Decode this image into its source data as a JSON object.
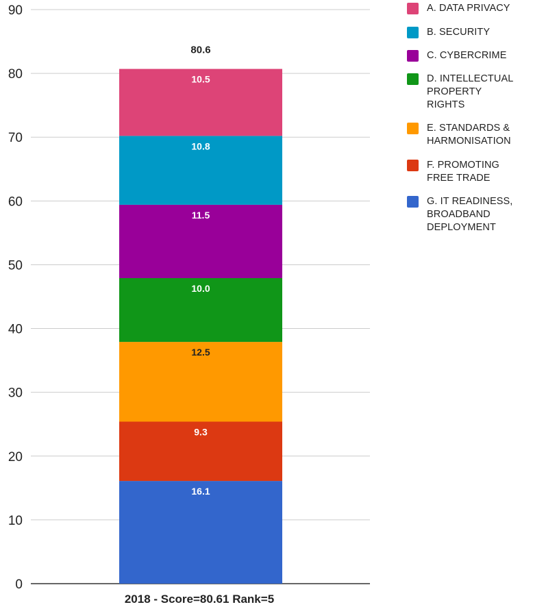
{
  "chart_data": {
    "type": "bar",
    "stacked": true,
    "categories": [
      "2018 - Score=80.61 Rank=5"
    ],
    "series": [
      {
        "name": "G. IT READINESS, BROADBAND DEPLOYMENT",
        "values": [
          16.1
        ],
        "label": "16.1",
        "color": "#3366cc"
      },
      {
        "name": "F. PROMOTING FREE TRADE",
        "values": [
          9.3
        ],
        "label": "9.3",
        "color": "#dc3912"
      },
      {
        "name": "E. STANDARDS & HARMONISATION",
        "values": [
          12.5
        ],
        "label": "12.5",
        "color": "#ff9900"
      },
      {
        "name": "D. INTELLECTUAL PROPERTY RIGHTS",
        "values": [
          10.0
        ],
        "label": "10.0",
        "color": "#109618"
      },
      {
        "name": "C. CYBERCRIME",
        "values": [
          11.5
        ],
        "label": "11.5",
        "color": "#990099"
      },
      {
        "name": "B. SECURITY",
        "values": [
          10.8
        ],
        "label": "10.8",
        "color": "#0099c6"
      },
      {
        "name": "A. DATA PRIVACY",
        "values": [
          10.5
        ],
        "label": "10.5",
        "color": "#dd4477"
      }
    ],
    "total_label": "80.6",
    "ylim": [
      0,
      90
    ],
    "yticks": [
      "0",
      "10",
      "20",
      "30",
      "40",
      "50",
      "60",
      "70",
      "80",
      "90"
    ],
    "grid": true,
    "legend_position": "right"
  },
  "legend": [
    {
      "text": "A. DATA PRIVACY",
      "color": "#dd4477"
    },
    {
      "text": "B. SECURITY",
      "color": "#0099c6"
    },
    {
      "text": "C. CYBERCRIME",
      "color": "#990099"
    },
    {
      "text": "D. INTELLECTUAL\nPROPERTY\nRIGHTS",
      "color": "#109618"
    },
    {
      "text": "E. STANDARDS &\nHARMONISATION",
      "color": "#ff9900"
    },
    {
      "text": "F. PROMOTING\nFREE TRADE",
      "color": "#dc3912"
    },
    {
      "text": "G. IT READINESS,\nBROADBAND\nDEPLOYMENT",
      "color": "#3366cc"
    }
  ]
}
